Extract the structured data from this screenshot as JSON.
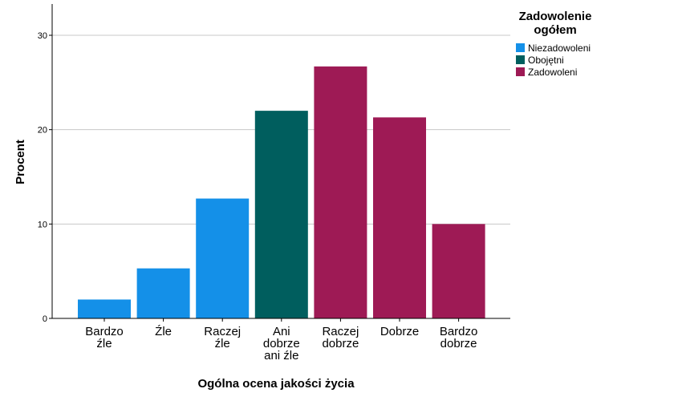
{
  "chart_data": {
    "type": "bar",
    "categories": [
      [
        "Bardzo",
        "źle"
      ],
      [
        "Źle"
      ],
      [
        "Raczej",
        "źle"
      ],
      [
        "Ani",
        "dobrze",
        "ani źle"
      ],
      [
        "Raczej",
        "dobrze"
      ],
      [
        "Dobrze"
      ],
      [
        "Bardzo",
        "dobrze"
      ]
    ],
    "values": [
      2.0,
      5.3,
      12.7,
      22.0,
      26.7,
      21.3,
      10.0
    ],
    "groups": [
      0,
      0,
      0,
      1,
      2,
      2,
      2
    ],
    "xlabel": "Ogólna ocena jakości życia",
    "ylabel": "Procent",
    "ylim": [
      0,
      30
    ],
    "yticks": [
      0,
      10,
      20,
      30
    ],
    "grid": true,
    "legend": {
      "title_lines": [
        "Zadowolenie",
        "ogółem"
      ],
      "position": "top-right",
      "entries": [
        {
          "label": "Niezadowoleni",
          "color": "#1490E8"
        },
        {
          "label": "Obojętni",
          "color": "#005E5E"
        },
        {
          "label": "Zadowoleni",
          "color": "#9E1A55"
        }
      ]
    }
  }
}
